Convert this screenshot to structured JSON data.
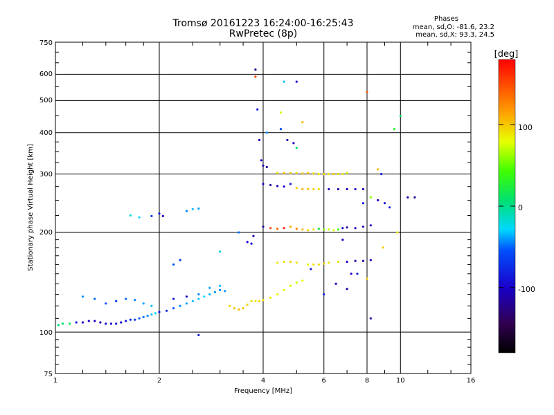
{
  "header": {
    "title": "Tromsø 20161223 16:24:00-16:25:43",
    "subtitle": "RwPretec (8p)",
    "stats_title": "Phases",
    "stats_o": "mean, sd,O: -81.6, 23.2",
    "stats_x": "mean, sd,X:  93.3, 24.5"
  },
  "chart_data": {
    "type": "scatter",
    "title": "Tromsø 20161223 16:24:00-16:25:43",
    "subtitle": "RwPretec (8p)",
    "xlabel": "Frequency [MHz]",
    "ylabel": "Stationary phase Virtual Height [km]",
    "xscale": "log2",
    "yscale": "log",
    "xlim": [
      1,
      16
    ],
    "ylim": [
      75,
      750
    ],
    "x_ticks": [
      1,
      2,
      4,
      6,
      8,
      10,
      16
    ],
    "x_tick_labels": [
      "1",
      "2",
      "4",
      "6",
      "8",
      "10",
      "16"
    ],
    "y_ticks": [
      75,
      100,
      200,
      300,
      400,
      500,
      600,
      750
    ],
    "y_tick_labels": [
      "75",
      "100",
      "200",
      "300",
      "400",
      "500",
      "600",
      "750"
    ],
    "grid": true,
    "colorbar": {
      "label": "[deg]",
      "range": [
        -180,
        180
      ],
      "ticks": [
        -100,
        0,
        100
      ],
      "tick_labels": [
        "-100",
        "0",
        "100"
      ]
    },
    "points": [
      [
        1.02,
        105,
        10
      ],
      [
        1.05,
        106,
        10
      ],
      [
        1.1,
        106,
        20
      ],
      [
        1.15,
        107,
        -100
      ],
      [
        1.2,
        107,
        -110
      ],
      [
        1.25,
        108,
        -110
      ],
      [
        1.3,
        108,
        -110
      ],
      [
        1.35,
        107,
        -115
      ],
      [
        1.4,
        106,
        -110
      ],
      [
        1.45,
        106,
        -110
      ],
      [
        1.5,
        106,
        -105
      ],
      [
        1.55,
        107,
        -105
      ],
      [
        1.6,
        108,
        -100
      ],
      [
        1.65,
        109,
        -95
      ],
      [
        1.7,
        109,
        -90
      ],
      [
        1.75,
        110,
        -80
      ],
      [
        1.8,
        111,
        -70
      ],
      [
        1.85,
        112,
        -60
      ],
      [
        1.9,
        113,
        -40
      ],
      [
        1.95,
        114,
        -30
      ],
      [
        2.0,
        115,
        -100
      ],
      [
        2.1,
        116,
        -95
      ],
      [
        2.2,
        118,
        -80
      ],
      [
        2.3,
        120,
        -60
      ],
      [
        2.4,
        122,
        -50
      ],
      [
        2.5,
        124,
        -40
      ],
      [
        2.6,
        126,
        -35
      ],
      [
        2.7,
        128,
        -30
      ],
      [
        2.8,
        130,
        -45
      ],
      [
        2.9,
        132,
        -55
      ],
      [
        3.0,
        134,
        -60
      ],
      [
        3.1,
        133,
        -55
      ],
      [
        3.2,
        120,
        110
      ],
      [
        3.3,
        118,
        115
      ],
      [
        3.4,
        117,
        120
      ],
      [
        3.5,
        118,
        115
      ],
      [
        3.6,
        121,
        110
      ],
      [
        3.7,
        124,
        105
      ],
      [
        3.8,
        124,
        100
      ],
      [
        3.9,
        124,
        105
      ],
      [
        4.0,
        125,
        100
      ],
      [
        4.2,
        127,
        100
      ],
      [
        4.4,
        130,
        95
      ],
      [
        4.6,
        134,
        90
      ],
      [
        4.8,
        138,
        85
      ],
      [
        5.0,
        141,
        80
      ],
      [
        5.2,
        143,
        90
      ],
      [
        1.2,
        128,
        -60
      ],
      [
        1.3,
        126,
        -70
      ],
      [
        1.4,
        122,
        -80
      ],
      [
        1.5,
        124,
        -90
      ],
      [
        1.6,
        126,
        -70
      ],
      [
        1.7,
        125,
        -60
      ],
      [
        1.8,
        122,
        -50
      ],
      [
        1.9,
        120,
        -40
      ],
      [
        2.2,
        126,
        -100
      ],
      [
        2.4,
        128,
        -110
      ],
      [
        2.6,
        130,
        -60
      ],
      [
        2.8,
        136,
        -50
      ],
      [
        3.0,
        138,
        -40
      ],
      [
        1.65,
        225,
        -20
      ],
      [
        1.75,
        222,
        -30
      ],
      [
        1.9,
        224,
        -90
      ],
      [
        2.0,
        228,
        -100
      ],
      [
        2.05,
        224,
        -110
      ],
      [
        2.4,
        232,
        -60
      ],
      [
        2.5,
        235,
        -40
      ],
      [
        2.6,
        236,
        -50
      ],
      [
        2.2,
        160,
        -80
      ],
      [
        2.3,
        165,
        -90
      ],
      [
        2.6,
        98,
        -100
      ],
      [
        3.0,
        175,
        -20
      ],
      [
        3.4,
        200,
        -70
      ],
      [
        3.6,
        187,
        -110
      ],
      [
        3.7,
        185,
        -105
      ],
      [
        3.75,
        195,
        -120
      ],
      [
        3.8,
        620,
        -130
      ],
      [
        3.8,
        590,
        160
      ],
      [
        3.85,
        470,
        -100
      ],
      [
        3.9,
        380,
        -120
      ],
      [
        3.95,
        330,
        -110
      ],
      [
        4.0,
        318,
        -115
      ],
      [
        4.1,
        315,
        -120
      ],
      [
        4.0,
        280,
        -110
      ],
      [
        4.2,
        278,
        -115
      ],
      [
        4.4,
        276,
        -120
      ],
      [
        4.6,
        275,
        -110
      ],
      [
        4.8,
        280,
        -100
      ],
      [
        4.1,
        400,
        -60
      ],
      [
        4.5,
        410,
        -80
      ],
      [
        4.7,
        380,
        -120
      ],
      [
        4.9,
        372,
        -110
      ],
      [
        5.0,
        360,
        10
      ],
      [
        4.6,
        570,
        -40
      ],
      [
        5.0,
        570,
        -110
      ],
      [
        5.2,
        430,
        120
      ],
      [
        4.5,
        460,
        80
      ],
      [
        4.4,
        302,
        100
      ],
      [
        4.6,
        302,
        110
      ],
      [
        4.8,
        302,
        105
      ],
      [
        5.0,
        302,
        100
      ],
      [
        5.2,
        301,
        120
      ],
      [
        5.4,
        302,
        110
      ],
      [
        5.6,
        301,
        105
      ],
      [
        5.8,
        300,
        100
      ],
      [
        6.0,
        300,
        110
      ],
      [
        6.2,
        300,
        100
      ],
      [
        6.4,
        300,
        110
      ],
      [
        6.6,
        300,
        105
      ],
      [
        6.8,
        300,
        100
      ],
      [
        7.0,
        302,
        80
      ],
      [
        5.0,
        272,
        110
      ],
      [
        5.2,
        270,
        120
      ],
      [
        5.4,
        270,
        115
      ],
      [
        5.6,
        270,
        110
      ],
      [
        5.8,
        270,
        100
      ],
      [
        6.2,
        270,
        -110
      ],
      [
        6.6,
        270,
        -120
      ],
      [
        7.0,
        270,
        -110
      ],
      [
        7.4,
        270,
        -105
      ],
      [
        7.8,
        270,
        -115
      ],
      [
        4.0,
        208,
        -120
      ],
      [
        4.2,
        206,
        160
      ],
      [
        4.4,
        205,
        150
      ],
      [
        4.6,
        206,
        170
      ],
      [
        4.8,
        208,
        130
      ],
      [
        5.0,
        205,
        140
      ],
      [
        5.2,
        204,
        120
      ],
      [
        5.4,
        203,
        110
      ],
      [
        5.6,
        204,
        100
      ],
      [
        5.8,
        205,
        20
      ],
      [
        6.0,
        204,
        60
      ],
      [
        6.2,
        204,
        80
      ],
      [
        6.4,
        203,
        90
      ],
      [
        6.6,
        204,
        40
      ],
      [
        6.8,
        206,
        -110
      ],
      [
        7.0,
        207,
        -120
      ],
      [
        7.4,
        206,
        -110
      ],
      [
        7.8,
        208,
        -115
      ],
      [
        8.2,
        210,
        -110
      ],
      [
        4.4,
        162,
        100
      ],
      [
        4.6,
        163,
        105
      ],
      [
        4.8,
        163,
        110
      ],
      [
        5.0,
        162,
        100
      ],
      [
        5.4,
        160,
        95
      ],
      [
        5.6,
        160,
        100
      ],
      [
        5.8,
        160,
        105
      ],
      [
        6.0,
        161,
        110
      ],
      [
        6.2,
        162,
        100
      ],
      [
        6.6,
        163,
        105
      ],
      [
        7.0,
        163,
        -110
      ],
      [
        7.4,
        164,
        -120
      ],
      [
        7.8,
        164,
        -115
      ],
      [
        8.2,
        165,
        -110
      ],
      [
        7.8,
        245,
        -100
      ],
      [
        8.2,
        255,
        60
      ],
      [
        8.6,
        250,
        -110
      ],
      [
        9.0,
        245,
        -105
      ],
      [
        9.3,
        238,
        -100
      ],
      [
        8.0,
        530,
        150
      ],
      [
        8.6,
        310,
        120
      ],
      [
        8.8,
        300,
        -100
      ],
      [
        9.6,
        410,
        30
      ],
      [
        10.0,
        450,
        10
      ],
      [
        10.5,
        255,
        -120
      ],
      [
        11.0,
        255,
        -130
      ],
      [
        9.8,
        200,
        100
      ],
      [
        8.9,
        180,
        110
      ],
      [
        6.0,
        130,
        -100
      ],
      [
        6.5,
        140,
        -110
      ],
      [
        7.0,
        135,
        -120
      ],
      [
        7.5,
        150,
        -100
      ],
      [
        8.0,
        145,
        110
      ],
      [
        8.2,
        110,
        -120
      ],
      [
        7.2,
        150,
        -110
      ],
      [
        5.5,
        155,
        -100
      ],
      [
        6.8,
        190,
        -110
      ]
    ]
  }
}
